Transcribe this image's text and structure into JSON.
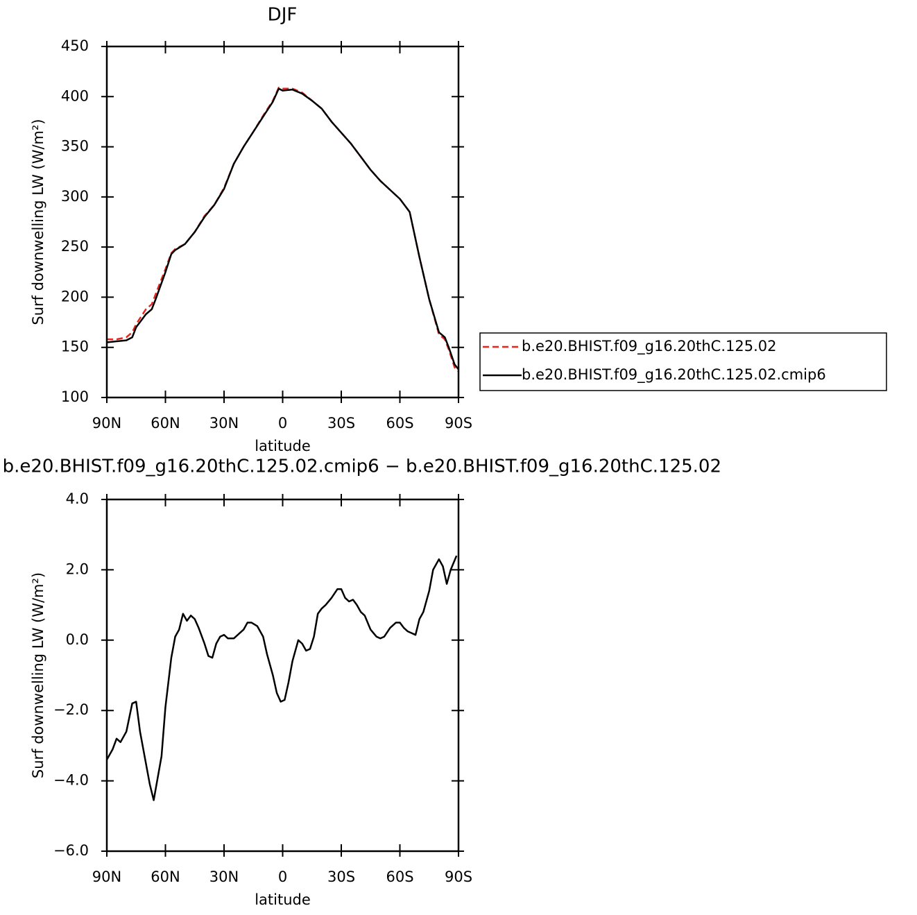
{
  "chart_data": [
    {
      "type": "line",
      "title": "DJF",
      "xlabel": "latitude",
      "ylabel": "Surf downwelling LW (W/m²)",
      "x": [
        90,
        85,
        80,
        77,
        75,
        70,
        67,
        65,
        60,
        57,
        55,
        50,
        45,
        40,
        35,
        30,
        25,
        20,
        15,
        10,
        5,
        2,
        0,
        -5,
        -10,
        -15,
        -20,
        -25,
        -30,
        -35,
        -40,
        -45,
        -50,
        -55,
        -60,
        -65,
        -70,
        -75,
        -80,
        -83,
        -85,
        -88,
        -90
      ],
      "series": [
        {
          "name": "b.e20.BHIST.f09_g16.20thC.125.02",
          "color": "#e8251f",
          "dash": true,
          "values": [
            158,
            158,
            160,
            165,
            173,
            188,
            193,
            203,
            228,
            244,
            248,
            253,
            265,
            281,
            292,
            309,
            333,
            350,
            365,
            381,
            396,
            409,
            408,
            408,
            404,
            396,
            388,
            375,
            364,
            353,
            340,
            327,
            316,
            307,
            298,
            285,
            240,
            198,
            163,
            158,
            148,
            130,
            126
          ]
        },
        {
          "name": "b.e20.BHIST.f09_g16.20thC.125.02.cmip6",
          "color": "#000000",
          "dash": false,
          "values": [
            155,
            156,
            157,
            160,
            170,
            183,
            188,
            198,
            225,
            243,
            247,
            253,
            265,
            280,
            292,
            308,
            333,
            350,
            365,
            380,
            395,
            408,
            406,
            407,
            403,
            396,
            388,
            375,
            364,
            353,
            340,
            327,
            316,
            307,
            298,
            285,
            240,
            198,
            165,
            160,
            150,
            133,
            128
          ]
        }
      ],
      "xlim": [
        90,
        -90
      ],
      "xticks": [
        {
          "value": 90,
          "label": "90N"
        },
        {
          "value": 60,
          "label": "60N"
        },
        {
          "value": 30,
          "label": "30N"
        },
        0,
        {
          "value": -30,
          "label": "30S"
        },
        {
          "value": -60,
          "label": "60S"
        },
        {
          "value": -90,
          "label": "90S"
        }
      ],
      "ylim": [
        100,
        450
      ],
      "yticks": [
        100,
        150,
        200,
        250,
        300,
        350,
        400,
        450
      ],
      "legend": "outside-right"
    },
    {
      "type": "line",
      "title": "b.e20.BHIST.f09_g16.20thC.125.02.cmip6 − b.e20.BHIST.f09_g16.20thC.125.02",
      "xlabel": "latitude",
      "ylabel": "Surf downwelling LW (W/m²)",
      "x": [
        90,
        87,
        85,
        83,
        80,
        77,
        75,
        73,
        70,
        68,
        66,
        62,
        60,
        57,
        55,
        53,
        51,
        49,
        47,
        45,
        43,
        40,
        38,
        36,
        34,
        32,
        30,
        28,
        25,
        23,
        20,
        18,
        16,
        13,
        10,
        8,
        5,
        3,
        1,
        -1,
        -3,
        -5,
        -8,
        -10,
        -12,
        -14,
        -16,
        -18,
        -20,
        -22,
        -25,
        -28,
        -30,
        -32,
        -34,
        -36,
        -38,
        -40,
        -42,
        -45,
        -48,
        -50,
        -52,
        -55,
        -58,
        -60,
        -62,
        -64,
        -66,
        -68,
        -70,
        -72,
        -75,
        -77,
        -80,
        -82,
        -84,
        -86,
        -89
      ],
      "series": [
        {
          "color": "#000000",
          "dash": false,
          "values": [
            -3.4,
            -3.1,
            -2.8,
            -2.9,
            -2.6,
            -1.8,
            -1.75,
            -2.6,
            -3.5,
            -4.1,
            -4.55,
            -3.3,
            -1.9,
            -0.5,
            0.1,
            0.3,
            0.75,
            0.55,
            0.7,
            0.6,
            0.35,
            -0.1,
            -0.45,
            -0.5,
            -0.1,
            0.1,
            0.15,
            0.05,
            0.05,
            0.15,
            0.3,
            0.5,
            0.5,
            0.4,
            0.1,
            -0.4,
            -1.0,
            -1.5,
            -1.75,
            -1.7,
            -1.2,
            -0.6,
            0.0,
            -0.1,
            -0.3,
            -0.25,
            0.1,
            0.75,
            0.9,
            1.0,
            1.2,
            1.45,
            1.45,
            1.2,
            1.1,
            1.15,
            1.0,
            0.8,
            0.7,
            0.3,
            0.1,
            0.05,
            0.1,
            0.35,
            0.5,
            0.5,
            0.35,
            0.25,
            0.2,
            0.15,
            0.6,
            0.8,
            1.4,
            2.0,
            2.3,
            2.1,
            1.6,
            2.0,
            2.4
          ]
        }
      ],
      "xlim": [
        90,
        -90
      ],
      "xticks": [
        {
          "value": 90,
          "label": "90N"
        },
        {
          "value": 60,
          "label": "60N"
        },
        {
          "value": 30,
          "label": "30N"
        },
        0,
        {
          "value": -30,
          "label": "30S"
        },
        {
          "value": -60,
          "label": "60S"
        },
        {
          "value": -90,
          "label": "90S"
        }
      ],
      "ylim": [
        -6,
        4
      ],
      "yticks": [
        {
          "value": -6,
          "label": "−6.0"
        },
        {
          "value": -4,
          "label": "−4.0"
        },
        {
          "value": -2,
          "label": "−2.0"
        },
        {
          "value": 0,
          "label": "0.0"
        },
        {
          "value": 2,
          "label": "2.0"
        },
        {
          "value": 4,
          "label": "4.0"
        }
      ]
    }
  ]
}
